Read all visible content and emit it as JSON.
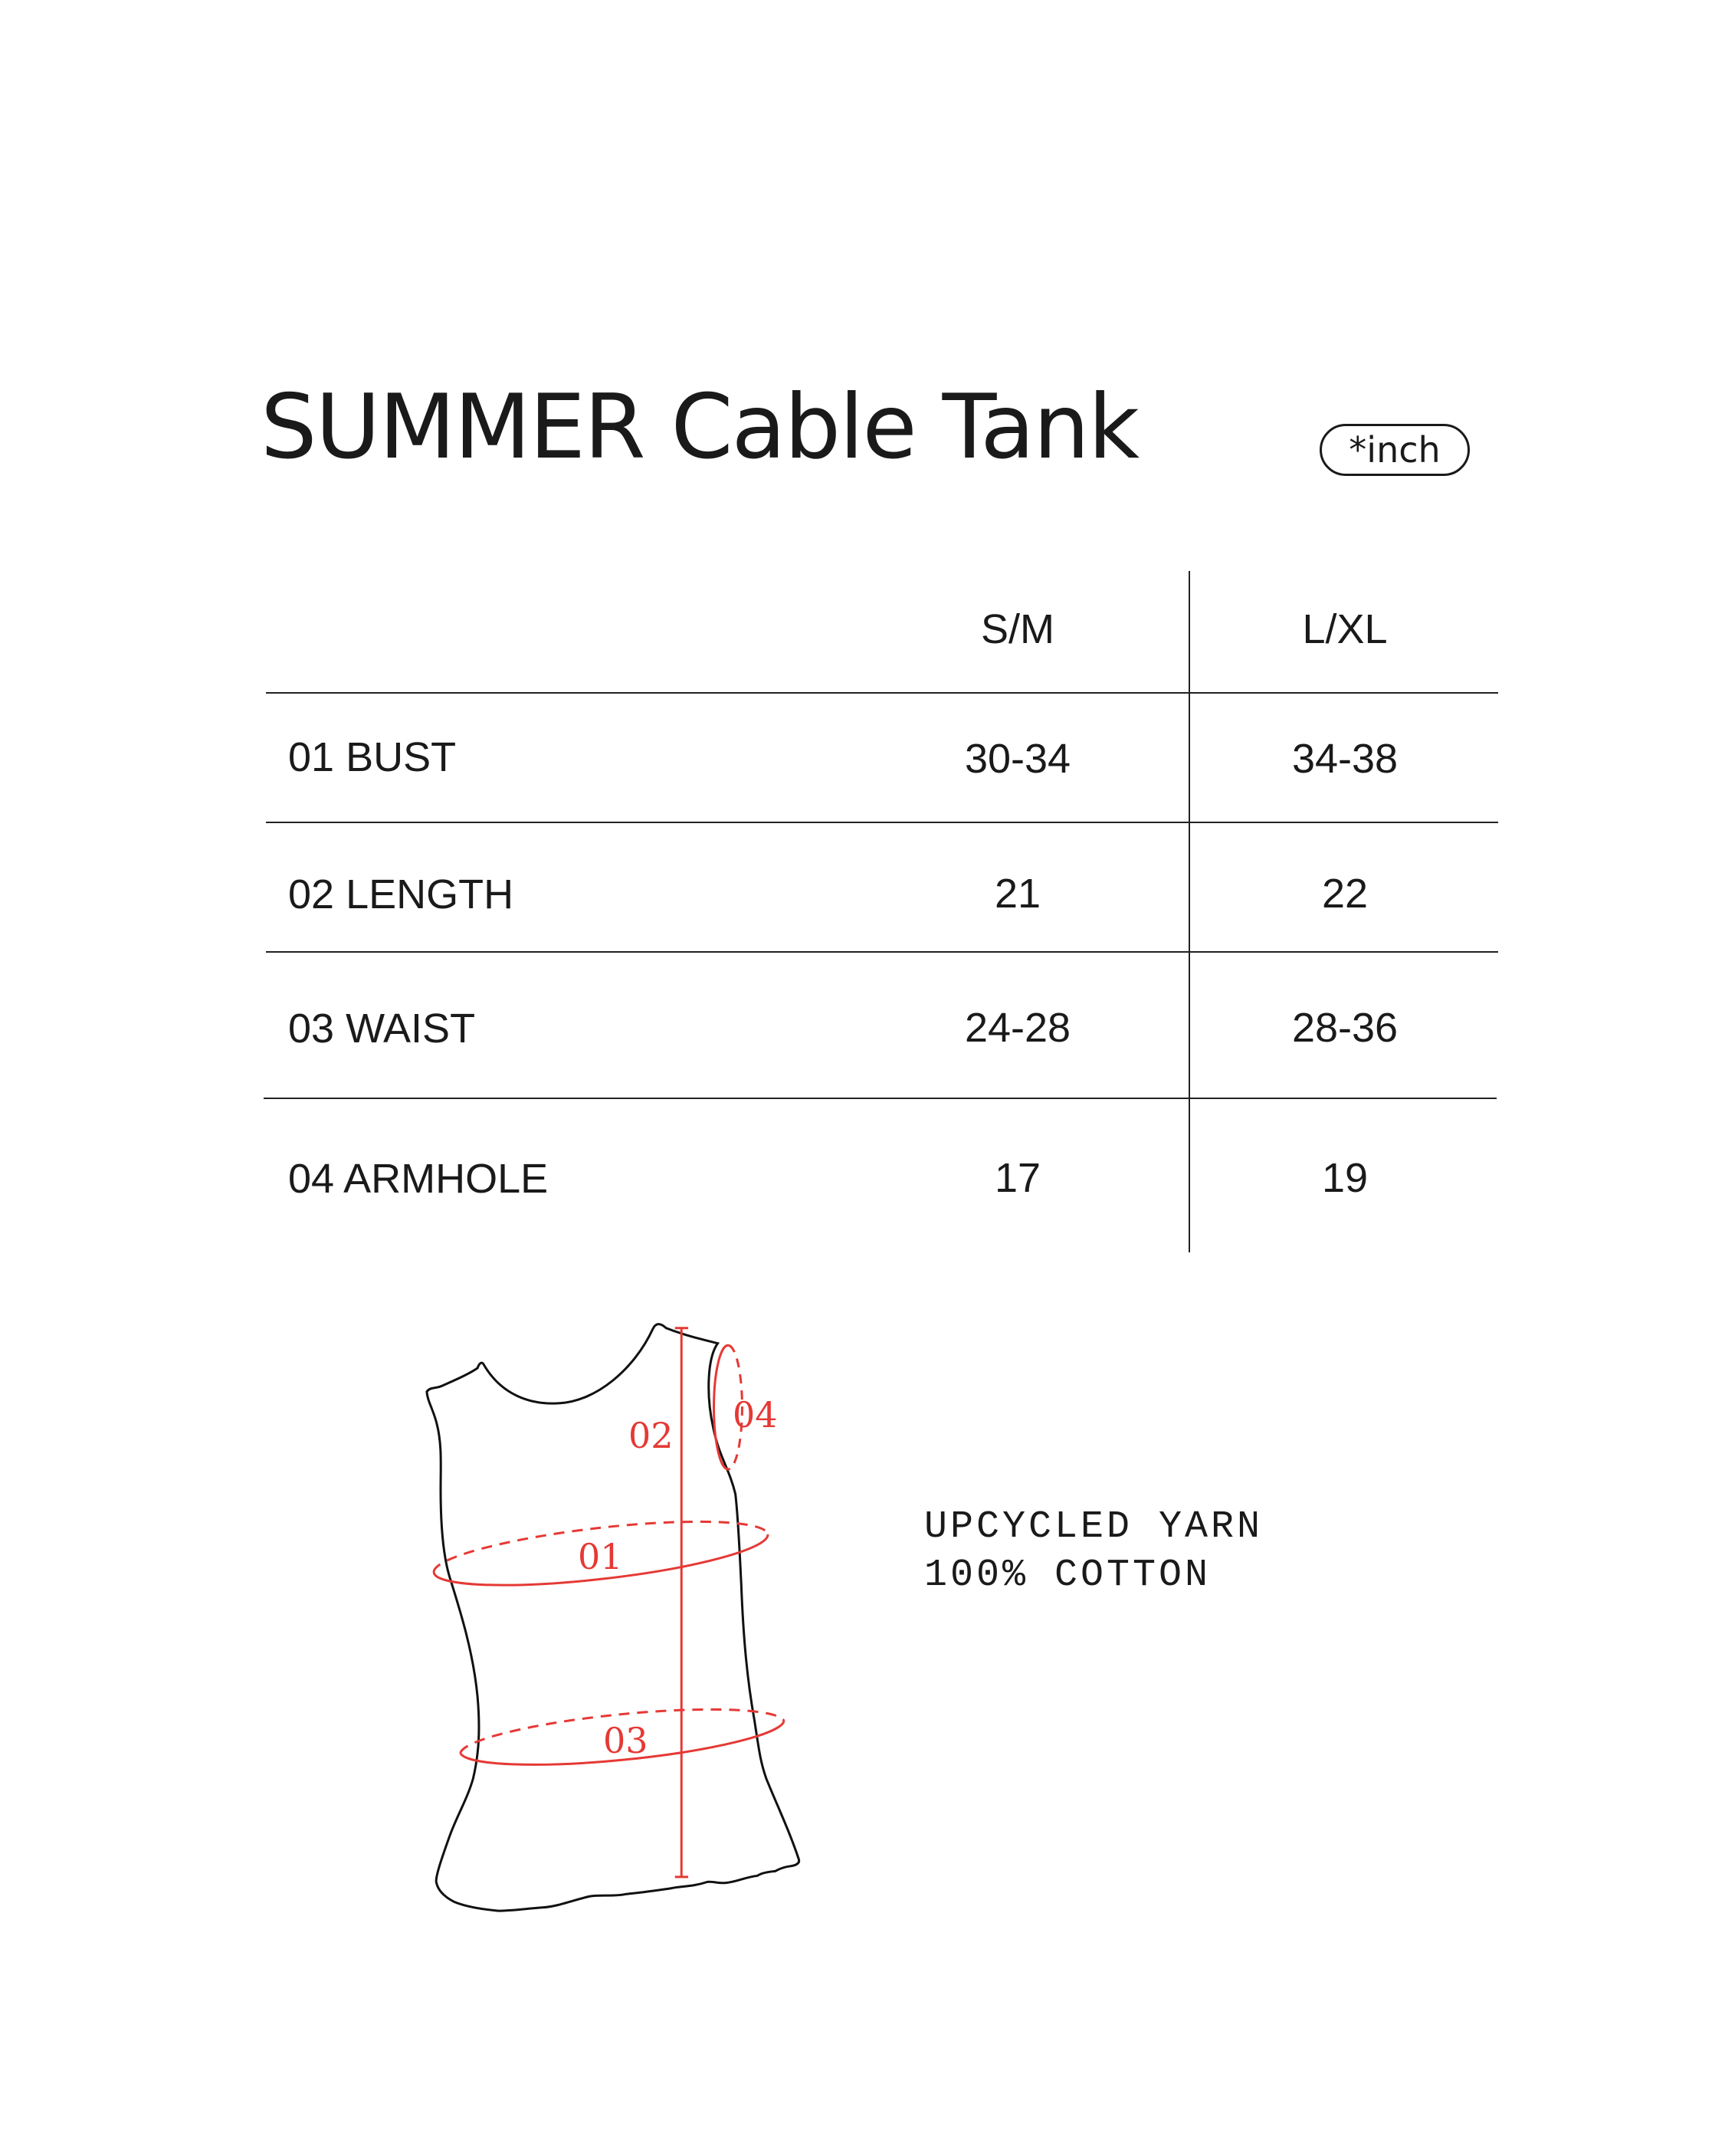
{
  "title": "SUMMER Cable Tank",
  "unit_badge": "*inch",
  "table": {
    "columns": [
      "S/M",
      "L/XL"
    ],
    "rows": [
      {
        "label": "01 BUST",
        "values": [
          "30-34",
          "34-38"
        ]
      },
      {
        "label": "02 LENGTH",
        "values": [
          "21",
          "22"
        ]
      },
      {
        "label": "03 WAIST",
        "values": [
          "24-28",
          "28-36"
        ]
      },
      {
        "label": "04 ARMHOLE",
        "values": [
          "17",
          "19"
        ]
      }
    ]
  },
  "diagram": {
    "labels": [
      "01",
      "02",
      "03",
      "04"
    ],
    "measure_color": "#e53935",
    "outline_color": "#111111"
  },
  "material": [
    "UPCYCLED YARN",
    "100% COTTON"
  ]
}
